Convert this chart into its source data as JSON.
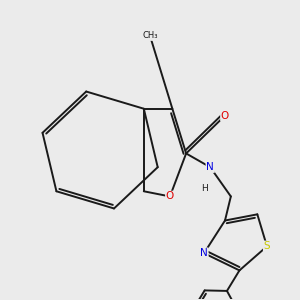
{
  "background_color": "#ebebeb",
  "bond_color": "#1a1a1a",
  "atom_colors": {
    "O": "#e00000",
    "N": "#0000e0",
    "S": "#c8c800",
    "C": "#1a1a1a"
  },
  "lw": 1.4,
  "fontsize": 7.5
}
